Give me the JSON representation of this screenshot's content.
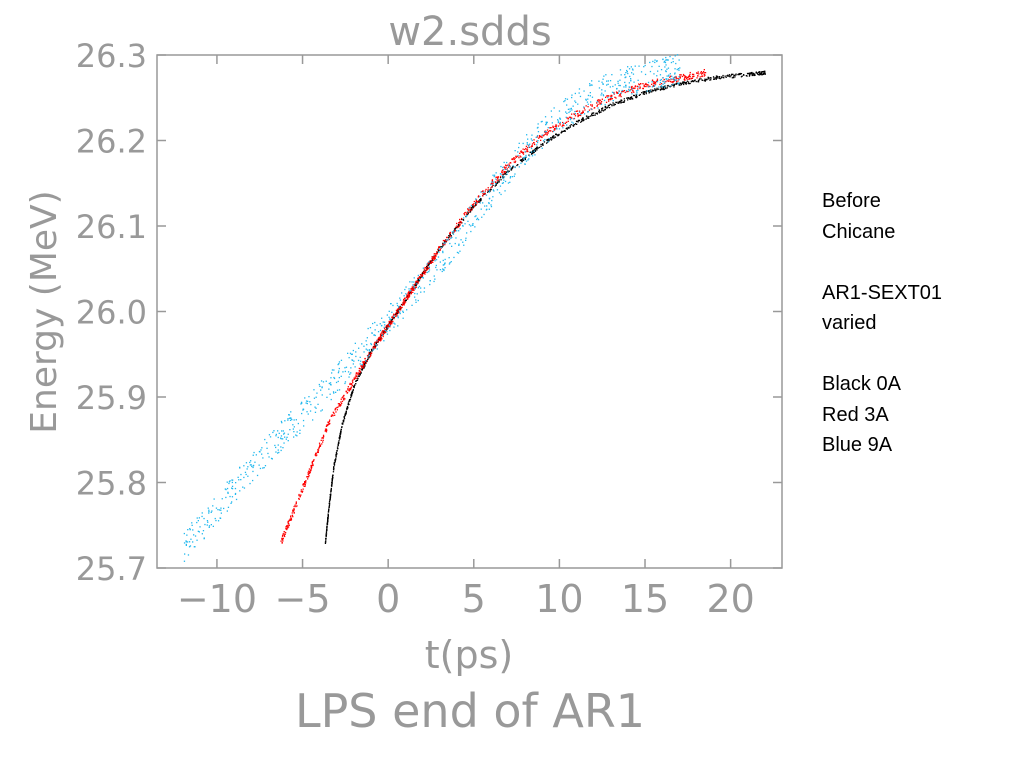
{
  "chart_data": {
    "type": "scatter",
    "title": "w2.sdds",
    "subtitle": "LPS end of AR1",
    "xlabel": "t(ps)",
    "ylabel": "Energy (MeV)",
    "xlim": [
      -13.5,
      23
    ],
    "ylim": [
      25.7,
      26.3
    ],
    "xticks": [
      -10,
      -5,
      0,
      5,
      10,
      15,
      20
    ],
    "xtick_labels": [
      "−10",
      "−5",
      "0",
      "5",
      "10",
      "15",
      "20"
    ],
    "yticks": [
      25.7,
      25.8,
      25.9,
      26.0,
      26.1,
      26.2,
      26.3
    ],
    "ytick_labels": [
      "25.7",
      "25.8",
      "25.9",
      "26.0",
      "26.1",
      "26.2",
      "26.3"
    ],
    "grid": false,
    "series": [
      {
        "color": "#000000",
        "points": [
          [
            -3.7,
            25.73
          ],
          [
            -3.5,
            25.77
          ],
          [
            -3.2,
            25.82
          ],
          [
            -2.7,
            25.87
          ],
          [
            -2.0,
            25.915
          ],
          [
            -1.0,
            25.955
          ],
          [
            0,
            25.985
          ],
          [
            1,
            26.015
          ],
          [
            2,
            26.045
          ],
          [
            3,
            26.075
          ],
          [
            5,
            26.125
          ],
          [
            7,
            26.165
          ],
          [
            9,
            26.197
          ],
          [
            11,
            26.222
          ],
          [
            13,
            26.242
          ],
          [
            15,
            26.257
          ],
          [
            17,
            26.267
          ],
          [
            19,
            26.274
          ],
          [
            21,
            26.278
          ],
          [
            22,
            26.28
          ]
        ],
        "spread": 0.002
      },
      {
        "color": "#ff0000",
        "points": [
          [
            -6.3,
            25.73
          ],
          [
            -5.5,
            25.77
          ],
          [
            -4.5,
            25.82
          ],
          [
            -3.5,
            25.87
          ],
          [
            -2.2,
            25.915
          ],
          [
            -1.0,
            25.955
          ],
          [
            0,
            25.985
          ],
          [
            1,
            26.015
          ],
          [
            2,
            26.045
          ],
          [
            3,
            26.075
          ],
          [
            5,
            26.127
          ],
          [
            7,
            26.172
          ],
          [
            9,
            26.207
          ],
          [
            11,
            26.232
          ],
          [
            13,
            26.252
          ],
          [
            15,
            26.266
          ],
          [
            17,
            26.274
          ],
          [
            18.5,
            26.28
          ]
        ],
        "spread": 0.004
      },
      {
        "color": "#22b8ee",
        "points": [
          [
            -12,
            25.725
          ],
          [
            -10,
            25.77
          ],
          [
            -8,
            25.82
          ],
          [
            -6,
            25.86
          ],
          [
            -4,
            25.9
          ],
          [
            -2,
            25.945
          ],
          [
            0,
            25.99
          ],
          [
            2,
            26.035
          ],
          [
            4,
            26.085
          ],
          [
            6,
            26.14
          ],
          [
            8,
            26.19
          ],
          [
            10,
            26.228
          ],
          [
            12,
            26.255
          ],
          [
            14,
            26.27
          ],
          [
            16,
            26.28
          ],
          [
            17,
            26.285
          ]
        ],
        "spread": 0.018
      }
    ]
  },
  "annotation": {
    "lines": [
      "Before",
      "Chicane",
      "",
      "AR1-SEXT01",
      "varied",
      "",
      "Black 0A",
      "Red 3A",
      "Blue 9A"
    ]
  }
}
